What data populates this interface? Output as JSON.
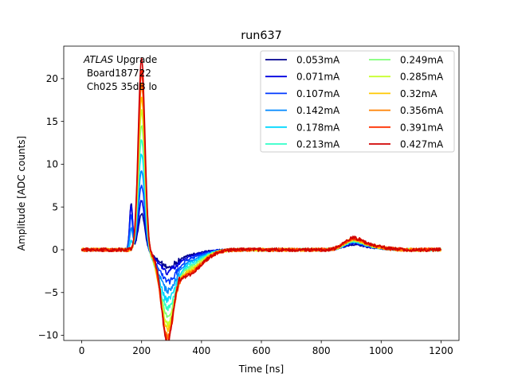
{
  "chart_data": {
    "type": "line",
    "title": "run637",
    "xlabel": "Time [ns]",
    "ylabel": "Amplitude [ADC counts]",
    "xlim": [
      -60,
      1260
    ],
    "ylim": [
      -10.6,
      23.8
    ],
    "xticks": [
      0,
      200,
      400,
      600,
      800,
      1000,
      1200
    ],
    "yticks": [
      -10,
      -5,
      0,
      5,
      10,
      15,
      20
    ],
    "grid": false,
    "legend_position": "top-right",
    "legend_columns": 2,
    "annotation": {
      "italic_part": "ATLAS",
      "normal_part": " Upgrade",
      "line2": " Board187722",
      "line3": " Ch025 35dB lo"
    },
    "series": [
      {
        "name": "0.053mA",
        "color": "#00008f",
        "pre_peak": 5.4,
        "peak": 4.3,
        "trough": -1.6,
        "bump": 0.5
      },
      {
        "name": "0.071mA",
        "color": "#0000e0",
        "pre_peak": 5.2,
        "peak": 5.8,
        "trough": -2.1,
        "bump": 0.6
      },
      {
        "name": "0.107mA",
        "color": "#0038ff",
        "pre_peak": 4.0,
        "peak": 7.6,
        "trough": -3.0,
        "bump": 0.7
      },
      {
        "name": "0.142mA",
        "color": "#0088ff",
        "pre_peak": 2.5,
        "peak": 9.4,
        "trough": -3.9,
        "bump": 0.75
      },
      {
        "name": "0.178mA",
        "color": "#00d8ff",
        "pre_peak": 1.0,
        "peak": 11.3,
        "trough": -4.8,
        "bump": 0.8
      },
      {
        "name": "0.213mA",
        "color": "#30ffc8",
        "pre_peak": 0.0,
        "peak": 13.0,
        "trough": -5.6,
        "bump": 0.85
      },
      {
        "name": "0.249mA",
        "color": "#80ff78",
        "pre_peak": 0.0,
        "peak": 14.7,
        "trough": -6.4,
        "bump": 0.9
      },
      {
        "name": "0.285mA",
        "color": "#c8ff30",
        "pre_peak": 0.0,
        "peak": 16.3,
        "trough": -7.1,
        "bump": 0.95
      },
      {
        "name": "0.32mA",
        "color": "#ffc800",
        "pre_peak": 0.0,
        "peak": 17.9,
        "trough": -7.7,
        "bump": 1.0
      },
      {
        "name": "0.356mA",
        "color": "#ff8000",
        "pre_peak": 0.0,
        "peak": 19.4,
        "trough": -8.3,
        "bump": 1.05
      },
      {
        "name": "0.391mA",
        "color": "#ff3000",
        "pre_peak": 0.0,
        "peak": 20.9,
        "trough": -8.7,
        "bump": 1.1
      },
      {
        "name": "0.427mA",
        "color": "#d00000",
        "pre_peak": 0.0,
        "peak": 22.5,
        "trough": -9.0,
        "bump": 1.15
      }
    ]
  }
}
